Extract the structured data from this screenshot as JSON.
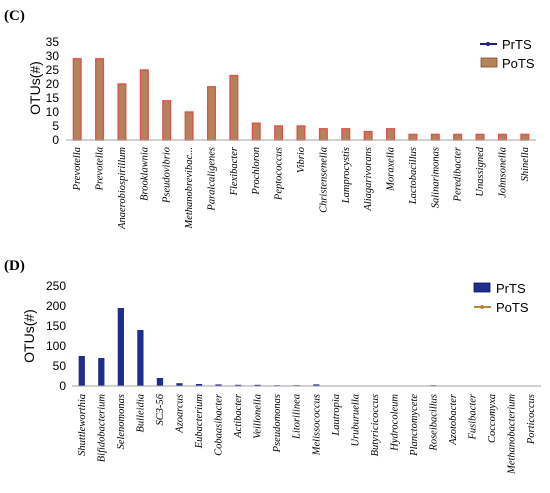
{
  "chart_data": [
    {
      "panel": "(C)",
      "type": "bar",
      "ylabel": "OTUs(#)",
      "ylim": [
        0,
        35
      ],
      "yticks": [
        0,
        5,
        10,
        15,
        20,
        25,
        30,
        35
      ],
      "categories": [
        "Prevotella",
        "Prevotella",
        "Anaerobiospirillum",
        "Brooklawnia",
        "Pseudovibrio",
        "Methanobrevibac...",
        "Paralcaligenes",
        "Flexibacter",
        "Prochloron",
        "Peptococcus",
        "Vibrio",
        "Christensenella",
        "Lamprocystis",
        "Aliagarivorans",
        "Moraxella",
        "Lactobacillus",
        "Salinarimonas",
        "Peredibacter",
        "Unassigned",
        "Johnsonella",
        "Shinella"
      ],
      "series": [
        {
          "name": "PrTS",
          "color": "#1f1f8f",
          "values": [
            0,
            0,
            0,
            0,
            0,
            0,
            0,
            0,
            0,
            0,
            0,
            0,
            0,
            0,
            0,
            0,
            0,
            0,
            0,
            0,
            0
          ]
        },
        {
          "name": "PoTS",
          "color": "#b5835a",
          "values": [
            29,
            29,
            20,
            25,
            14,
            10,
            19,
            23,
            6,
            5,
            5,
            4,
            4,
            3,
            4,
            2,
            2,
            2,
            2,
            2,
            2
          ]
        }
      ],
      "legend": "top-right"
    },
    {
      "panel": "(D)",
      "type": "bar",
      "ylabel": "OTUs(#)",
      "ylim": [
        0,
        250
      ],
      "yticks": [
        0,
        50,
        100,
        150,
        200,
        250
      ],
      "categories": [
        "Shuttleworthia",
        "Bifidobacterium",
        "Selenomonas",
        "Bulleidia",
        "SC3-56",
        "Azoarcus",
        "Eubacterium",
        "Cobaasibacter",
        "Actibacter",
        "Veillonella",
        "Pseudomonas",
        "Litorilinea",
        "Melissococcus",
        "Lautropia",
        "Uruburuella",
        "Butyricicoccus",
        "Hydrocoleum",
        "Planctomycete",
        "Roseibacillus",
        "Azotobacter",
        "Fusibacter",
        "Coccomyxa",
        "Methanobacterium",
        "Porticoccus"
      ],
      "series": [
        {
          "name": "PrTS",
          "color": "#1f2d8f",
          "values": [
            75,
            70,
            195,
            140,
            20,
            7,
            5,
            4,
            3,
            3,
            2,
            2,
            4,
            1,
            1,
            1,
            1,
            1,
            2,
            0,
            0,
            0,
            0,
            0
          ]
        },
        {
          "name": "PoTS",
          "color": "#b8863b",
          "values": [
            0,
            0,
            0,
            0,
            0,
            0,
            0,
            0,
            0,
            0,
            0,
            0,
            0,
            0,
            0,
            0,
            0,
            0,
            0,
            0,
            0,
            0,
            0,
            0
          ]
        }
      ],
      "legend": "top-right"
    }
  ]
}
